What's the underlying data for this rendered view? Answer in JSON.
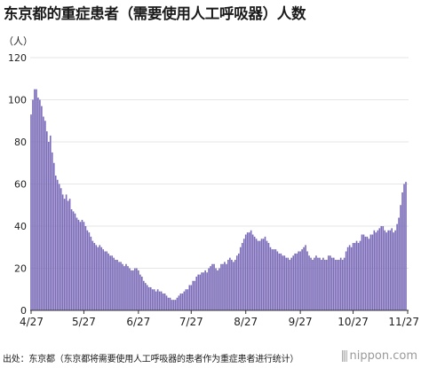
{
  "title": "东京都的重症患者（需要使用人工呼吸器）人数",
  "unit_label": "（人）",
  "source": "出处：东京都（东京都将需要使用人工呼吸器的患者作为重症患者进行统计）",
  "brand": "nippon.com",
  "colors": {
    "bar": "#7b6bb8",
    "grid": "#e6e6e6",
    "axis": "#333333"
  },
  "chart_data": {
    "type": "bar",
    "title": "东京都的重症患者（需要使用人工呼吸器）人数",
    "ylabel": "（人）",
    "xlabel": "",
    "ylim": [
      0,
      120
    ],
    "yticks": [
      0,
      20,
      40,
      60,
      80,
      100,
      120
    ],
    "xtick_labels": [
      {
        "label": "4/27",
        "index": 0
      },
      {
        "label": "5/27",
        "index": 30
      },
      {
        "label": "6/27",
        "index": 61
      },
      {
        "label": "7/27",
        "index": 91
      },
      {
        "label": "8/27",
        "index": 122
      },
      {
        "label": "9/27",
        "index": 153
      },
      {
        "label": "10/27",
        "index": 183
      },
      {
        "label": "11/27",
        "index": 214
      }
    ],
    "grid": true,
    "series": [
      {
        "values": [
          93,
          100,
          105,
          105,
          101,
          100,
          97,
          92,
          90,
          85,
          80,
          83,
          75,
          70,
          64,
          62,
          60,
          58,
          55,
          53,
          55,
          52,
          53,
          48,
          47,
          46,
          44,
          43,
          42,
          43,
          42,
          40,
          38,
          37,
          35,
          33,
          32,
          31,
          30,
          31,
          30,
          29,
          28,
          28,
          27,
          26,
          26,
          25,
          24,
          24,
          23,
          23,
          22,
          21,
          22,
          21,
          20,
          19,
          19,
          20,
          20,
          19,
          17,
          16,
          14,
          13,
          12,
          11,
          11,
          10,
          10,
          9,
          10,
          9,
          9,
          8,
          8,
          7,
          6,
          6,
          5,
          5,
          5,
          6,
          7,
          8,
          8,
          9,
          10,
          10,
          12,
          12,
          14,
          14,
          16,
          17,
          17,
          18,
          18,
          19,
          18,
          20,
          21,
          22,
          22,
          20,
          19,
          20,
          22,
          22,
          23,
          22,
          24,
          25,
          24,
          23,
          24,
          26,
          27,
          30,
          32,
          34,
          36,
          37,
          37,
          38,
          36,
          35,
          34,
          33,
          33,
          34,
          34,
          35,
          33,
          32,
          30,
          29,
          29,
          29,
          28,
          27,
          27,
          26,
          26,
          25,
          25,
          24,
          25,
          26,
          27,
          27,
          28,
          28,
          29,
          30,
          31,
          28,
          26,
          25,
          24,
          25,
          26,
          25,
          25,
          24,
          25,
          24,
          24,
          26,
          26,
          25,
          25,
          24,
          24,
          24,
          25,
          24,
          25,
          28,
          30,
          31,
          30,
          32,
          32,
          33,
          32,
          33,
          36,
          36,
          35,
          35,
          34,
          36,
          36,
          38,
          37,
          38,
          39,
          40,
          40,
          38,
          37,
          38,
          38,
          39,
          37,
          38,
          41,
          44,
          50,
          56,
          60,
          61
        ]
      }
    ]
  }
}
